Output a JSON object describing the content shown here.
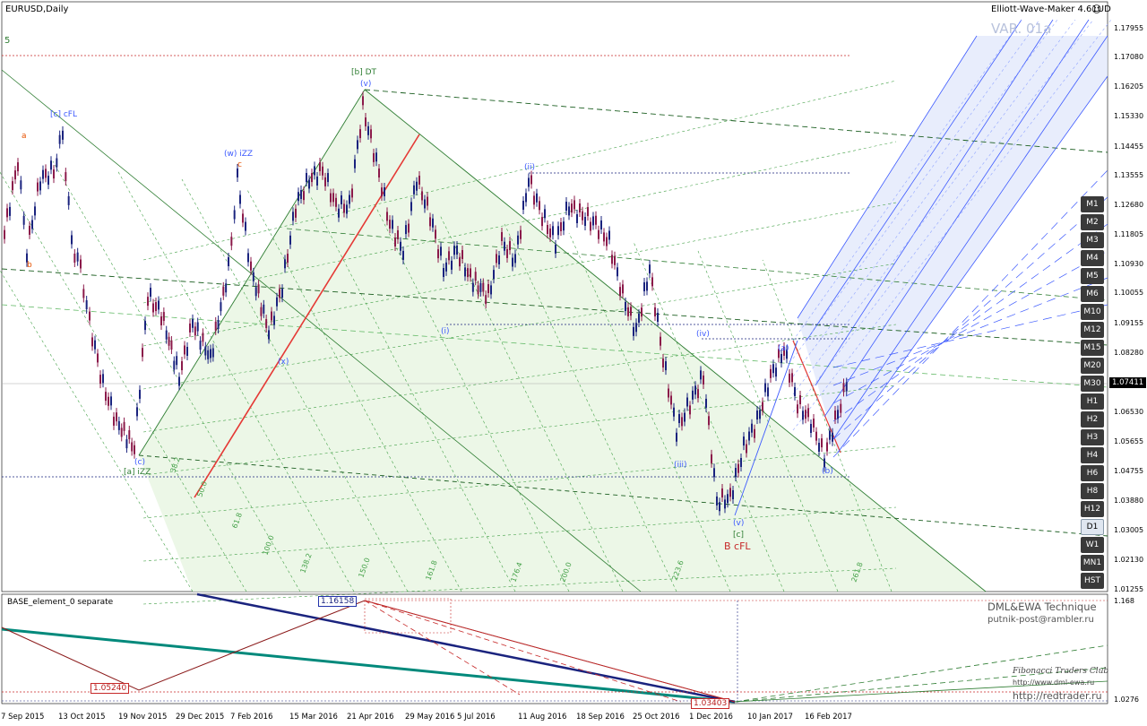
{
  "window": {
    "symbol_title": "EURUSD,Daily",
    "indicator_title": "Elliott-Wave-Maker 4.61UD",
    "watermark": "VAR. 01a",
    "corner_mark": "5"
  },
  "timeframes": [
    "M1",
    "M2",
    "M3",
    "M4",
    "M5",
    "M6",
    "M10",
    "M12",
    "M15",
    "M20",
    "M30",
    "H1",
    "H2",
    "H3",
    "H4",
    "H6",
    "H8",
    "H12",
    "D1",
    "W1",
    "MN1",
    "HST"
  ],
  "active_timeframe": "D1",
  "price_axis": [
    "1.17955",
    "1.17080",
    "1.16205",
    "1.15330",
    "1.14455",
    "1.13555",
    "1.12680",
    "1.11805",
    "1.10930",
    "1.10055",
    "1.09155",
    "1.08280",
    "1.07411",
    "1.06530",
    "1.05655",
    "1.04755",
    "1.03880",
    "1.03005",
    "1.02130",
    "1.01255"
  ],
  "current_price": "1.07411",
  "date_axis": [
    "7 Sep 2015",
    "13 Oct 2015",
    "19 Nov 2015",
    "29 Dec 2015",
    "7 Feb 2016",
    "15 Mar 2016",
    "21 Apr 2016",
    "29 May 2016",
    "5 Jul 2016",
    "11 Aug 2016",
    "18 Sep 2016",
    "25 Oct 2016",
    "1 Dec 2016",
    "10 Jan 2017",
    "16 Feb 2017"
  ],
  "wave_labels": {
    "b_dt": "[b] DT",
    "v_top": "(v)",
    "c_cfl": "[c] cFL",
    "w_izz": "(w) iZZ",
    "a_izz": "[a] iZZ",
    "c_low": "(c)",
    "x_label": "(x)",
    "ii": "(ii)",
    "i": "(i)",
    "iii": "(iii)",
    "iv": "(iv)",
    "v_low": "(v)",
    "c_green": "[c]",
    "b_cfl": "B cFL",
    "a_small": "(a)",
    "b_small": "(b)",
    "a_orange": "a",
    "b_orange": "b",
    "c_orange": "c"
  },
  "fib_labels": [
    "61.8",
    "100.0",
    "138.2",
    "150.0",
    "161.8",
    "176.4",
    "200.0",
    "223.6",
    "261.8",
    "38.2",
    "50.0"
  ],
  "subwindow": {
    "title": "BASE_element_0 separate",
    "value_high": "1.16158",
    "value_mid": "1.05240",
    "value_low": "1.03403",
    "axis_top": "1.168",
    "axis_bottom": "1.0276"
  },
  "branding": {
    "line1": "DML&EWA Technique",
    "line2": "putnik-post@rambler.ru",
    "club_title": "Fibonacci Traders Club",
    "club_url": "http://www.dml-ewa.ru",
    "redtrader": "http://redtrader.ru"
  },
  "colors": {
    "bull_candle": "#1a237e",
    "bear_candle": "#8b1a4a",
    "channel_fill": "#e8f5e0",
    "projection_fill": "#dde6fb",
    "green_line": "#2e7d32",
    "red_line": "#e53935",
    "blue_line": "#4466dd"
  }
}
